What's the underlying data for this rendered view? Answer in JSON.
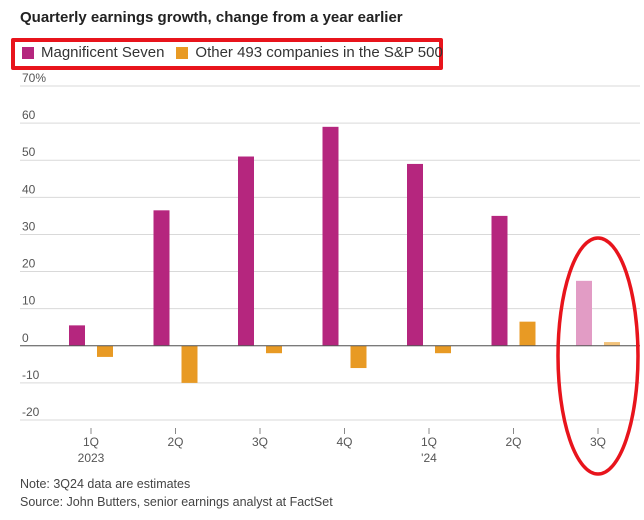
{
  "chart_data": {
    "type": "bar",
    "title": "Quarterly earnings growth, change from a year earlier",
    "categories": [
      "1Q",
      "2Q",
      "3Q",
      "4Q",
      "1Q",
      "2Q",
      "3Q"
    ],
    "category_sublabels": [
      "2023",
      "",
      "",
      "",
      "'24",
      "",
      ""
    ],
    "series": [
      {
        "name": "Magnificent Seven",
        "color": "#b5267e",
        "values": [
          5.5,
          36.5,
          51,
          59,
          49,
          35,
          17.5
        ]
      },
      {
        "name": "Other 493 companies in the S&P 500",
        "color": "#e89a24",
        "values": [
          -3,
          -10,
          -2,
          -6,
          -2,
          6.5,
          1
        ]
      }
    ],
    "estimate_index": 6,
    "estimate_colors": [
      "#e29cc5",
      "#f2c27a"
    ],
    "ylim": [
      -20,
      70
    ],
    "yticks": [
      -20,
      -10,
      0,
      10,
      20,
      30,
      40,
      50,
      60,
      70
    ],
    "ytick_labels": [
      "-20",
      "-10",
      "0",
      "10",
      "20",
      "30",
      "40",
      "50",
      "60",
      "70%"
    ],
    "grid": true,
    "legend_position": "top-left",
    "highlight_color": "#e8141c"
  },
  "note": "Note: 3Q24 data are estimates",
  "source": "Source: John Butters, senior earnings analyst at FactSet"
}
